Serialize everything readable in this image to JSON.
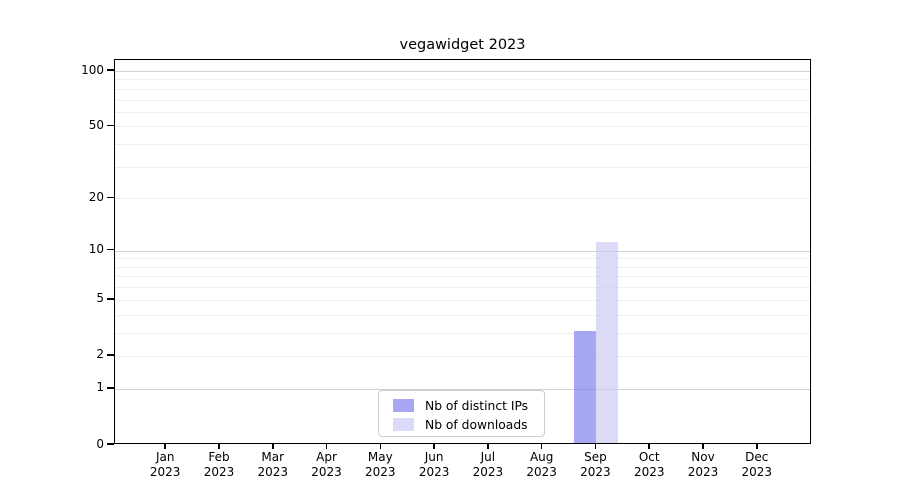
{
  "chart_data": {
    "type": "bar",
    "title": "vegawidget 2023",
    "months": [
      "Jan",
      "Feb",
      "Mar",
      "Apr",
      "May",
      "Jun",
      "Jul",
      "Aug",
      "Sep",
      "Oct",
      "Nov",
      "Dec"
    ],
    "year": "2023",
    "series": [
      {
        "name": "Nb of distinct IPs",
        "color": "rgba(120,120,238,0.65)",
        "color_hex": "#a9a9f2",
        "values": [
          0,
          0,
          0,
          0,
          0,
          0,
          0,
          0,
          3,
          0,
          0,
          0
        ]
      },
      {
        "name": "Nb of downloads",
        "color": "rgba(200,200,245,0.65)",
        "color_hex": "#dcdcf8",
        "values": [
          0,
          0,
          0,
          0,
          0,
          0,
          0,
          0,
          11,
          0,
          0,
          0
        ]
      }
    ],
    "yscale": "log1p",
    "yticks": [
      0,
      1,
      2,
      5,
      10,
      20,
      50,
      100
    ],
    "ylim": [
      0,
      115
    ],
    "grid": {
      "major": [
        1,
        10,
        100
      ],
      "minor": [
        2,
        3,
        4,
        5,
        6,
        7,
        8,
        9,
        20,
        30,
        40,
        50,
        60,
        70,
        80,
        90
      ],
      "major_color": "#d2d2d2",
      "minor_color": "#efefef",
      "axis": "y-only"
    },
    "legend": {
      "position": "lower center"
    },
    "xlabel": "",
    "ylabel": ""
  }
}
